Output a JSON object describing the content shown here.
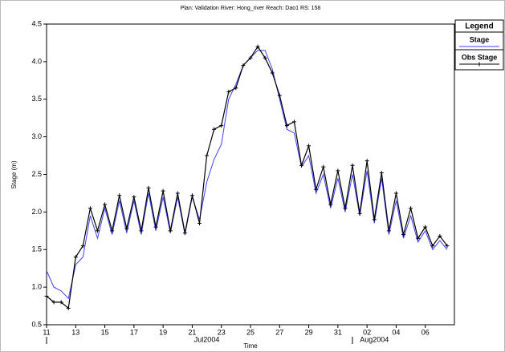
{
  "chart_data": {
    "type": "line",
    "title": "Plan: Validation   River: Hong_river   Reach: Dao1   RS: 158",
    "x_label": "Time",
    "y_label": "Stage (m)",
    "legend_title": "Legend",
    "legend_position": "outside-upper-right",
    "xlim": [
      0,
      28
    ],
    "ylim": [
      0.5,
      4.5
    ],
    "xticks": [
      {
        "value": 0,
        "label": "11"
      },
      {
        "value": 2,
        "label": "13"
      },
      {
        "value": 4,
        "label": "15"
      },
      {
        "value": 6,
        "label": "17"
      },
      {
        "value": 8,
        "label": "19"
      },
      {
        "value": 10,
        "label": "21"
      },
      {
        "value": 12,
        "label": "23"
      },
      {
        "value": 14,
        "label": "25"
      },
      {
        "value": 16,
        "label": "27"
      },
      {
        "value": 18,
        "label": "29"
      },
      {
        "value": 20,
        "label": "31"
      },
      {
        "value": 22,
        "label": "02"
      },
      {
        "value": 24,
        "label": "04"
      },
      {
        "value": 26,
        "label": "06"
      }
    ],
    "month_labels": [
      {
        "value": 11,
        "label": "Jul2004"
      },
      {
        "value": 22.5,
        "label": "Aug2004"
      }
    ],
    "month_marks": [
      0,
      21
    ],
    "yticks": [
      0.5,
      {
        "value": 1,
        "label": "1.0"
      },
      1.5,
      {
        "value": 2,
        "label": "2.0"
      },
      2.5,
      {
        "value": 3,
        "label": "3.0"
      },
      3.5,
      {
        "value": 4,
        "label": "4.0"
      },
      4.5
    ],
    "x": [
      0,
      0.5,
      1,
      1.5,
      2,
      2.5,
      3,
      3.5,
      4,
      4.5,
      5,
      5.5,
      6,
      6.5,
      7,
      7.5,
      8,
      8.5,
      9,
      9.5,
      10,
      10.5,
      11,
      11.5,
      12,
      12.5,
      13,
      13.5,
      14,
      14.5,
      15,
      15.5,
      16,
      16.5,
      17,
      17.5,
      18,
      18.5,
      19,
      19.5,
      20,
      20.5,
      21,
      21.5,
      22,
      22.5,
      23,
      23.5,
      24,
      24.5,
      25,
      25.5,
      26,
      26.5,
      27,
      27.5
    ],
    "series": [
      {
        "name": "Stage",
        "color": "#3f3fff",
        "marker": false,
        "values": [
          1.22,
          1.0,
          0.95,
          0.85,
          1.3,
          1.4,
          1.95,
          1.65,
          2.05,
          1.7,
          2.15,
          1.72,
          2.15,
          1.7,
          2.25,
          1.75,
          2.2,
          1.72,
          2.2,
          1.7,
          2.2,
          1.9,
          2.4,
          2.7,
          2.9,
          3.5,
          3.7,
          3.95,
          4.05,
          4.15,
          4.15,
          3.9,
          3.5,
          3.1,
          3.05,
          2.6,
          2.75,
          2.25,
          2.5,
          2.05,
          2.45,
          2.0,
          2.5,
          1.95,
          2.55,
          1.85,
          2.45,
          1.7,
          2.15,
          1.65,
          1.95,
          1.6,
          1.75,
          1.5,
          1.62,
          1.5
        ]
      },
      {
        "name": "Obs Stage",
        "color": "#000000",
        "marker": true,
        "values": [
          0.88,
          0.8,
          0.8,
          0.72,
          1.4,
          1.55,
          2.05,
          1.75,
          2.1,
          1.75,
          2.22,
          1.78,
          2.2,
          1.75,
          2.32,
          1.8,
          2.28,
          1.75,
          2.25,
          1.72,
          2.22,
          1.85,
          2.75,
          3.1,
          3.15,
          3.6,
          3.65,
          3.95,
          4.05,
          4.2,
          4.05,
          3.85,
          3.55,
          3.15,
          3.2,
          2.62,
          2.88,
          2.3,
          2.6,
          2.1,
          2.55,
          2.05,
          2.62,
          1.98,
          2.68,
          1.9,
          2.52,
          1.75,
          2.25,
          1.7,
          2.05,
          1.65,
          1.8,
          1.55,
          1.68,
          1.55
        ]
      }
    ]
  }
}
